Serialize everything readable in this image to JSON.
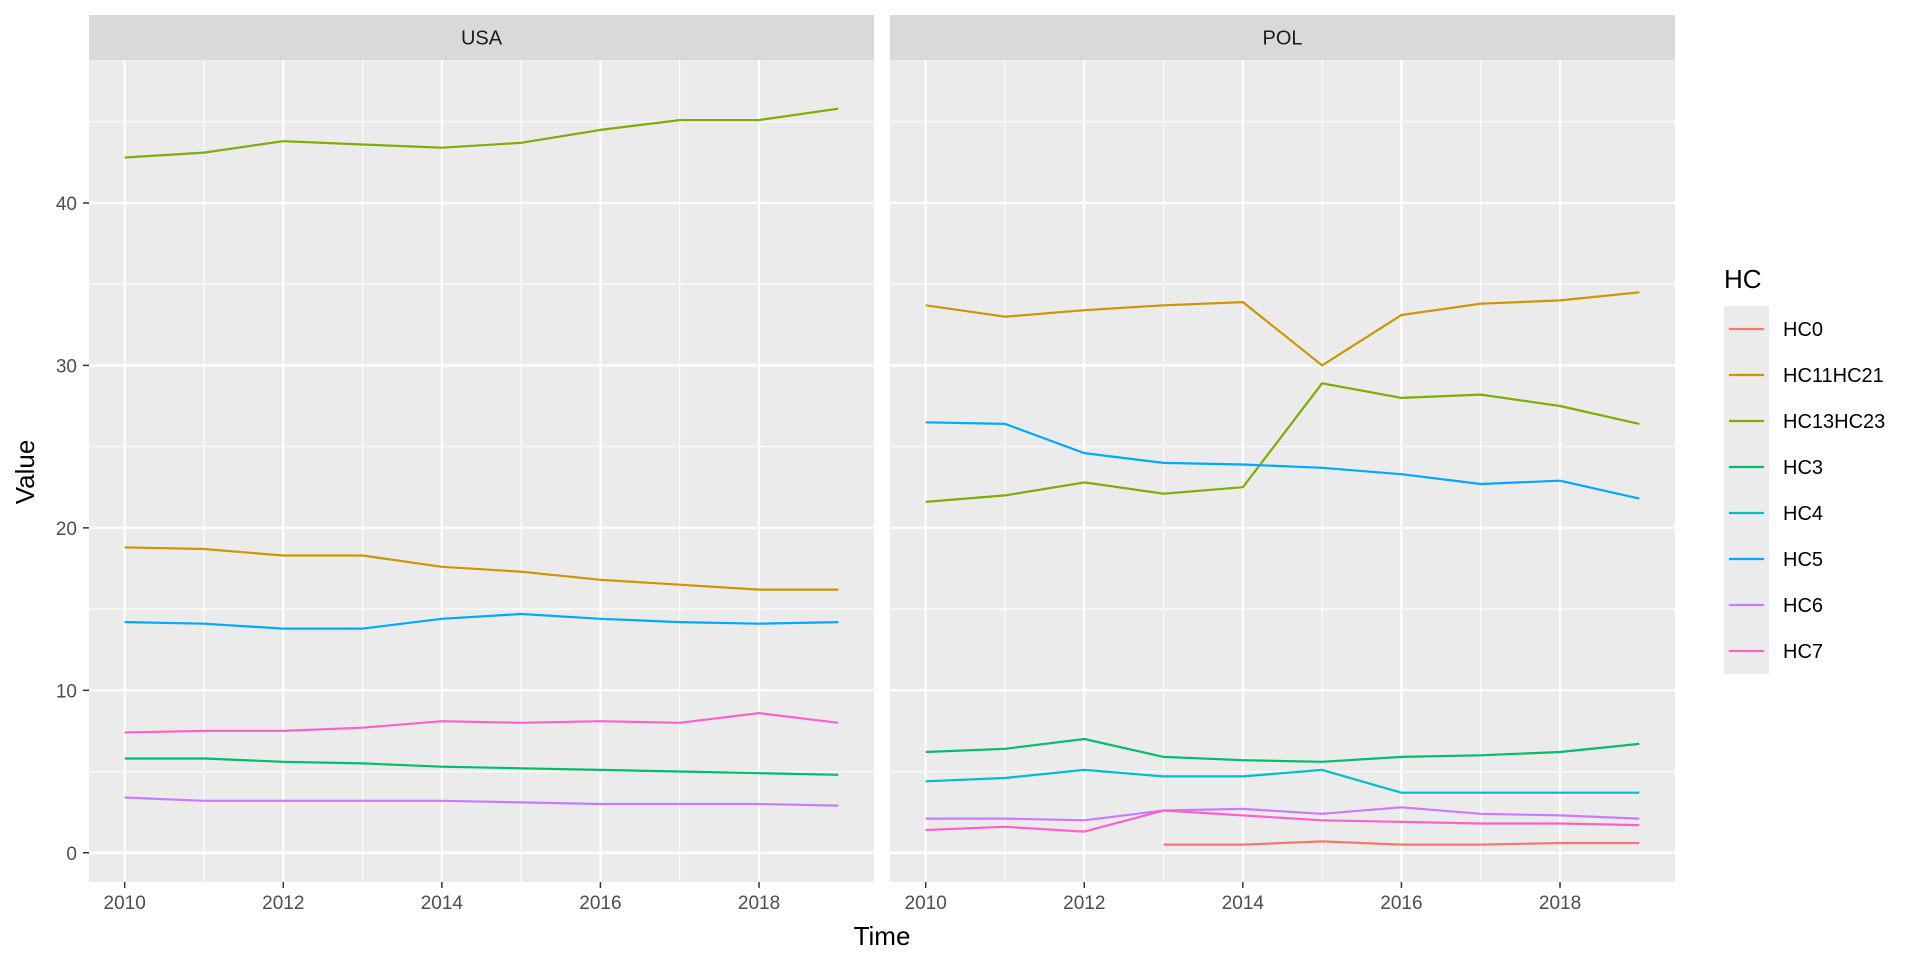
{
  "chart_data": {
    "type": "line",
    "xlabel": "Time",
    "ylabel": "Value",
    "xlim": [
      2009.55,
      2019.45
    ],
    "ylim": [
      -1.8,
      48.8
    ],
    "x_ticks": [
      2010,
      2012,
      2014,
      2016,
      2018
    ],
    "y_ticks": [
      0,
      10,
      20,
      30,
      40
    ],
    "grid": true,
    "legend": {
      "title": "HC",
      "position": "right",
      "entries": [
        {
          "name": "HC0",
          "color": "#F8766D"
        },
        {
          "name": "HC11HC21",
          "color": "#CD9600"
        },
        {
          "name": "HC13HC23",
          "color": "#7CAE00"
        },
        {
          "name": "HC3",
          "color": "#00BE67"
        },
        {
          "name": "HC4",
          "color": "#00BFC4"
        },
        {
          "name": "HC5",
          "color": "#00A9FF"
        },
        {
          "name": "HC6",
          "color": "#C77CFF"
        },
        {
          "name": "HC7",
          "color": "#FF61CC"
        }
      ]
    },
    "panels": [
      {
        "title": "USA",
        "x": [
          2010,
          2011,
          2012,
          2013,
          2014,
          2015,
          2016,
          2017,
          2018,
          2019
        ],
        "series": [
          {
            "name": "HC11HC21",
            "color": "#CD9600",
            "values": [
              18.8,
              18.7,
              18.3,
              18.3,
              17.6,
              17.3,
              16.8,
              16.5,
              16.2,
              16.2
            ]
          },
          {
            "name": "HC13HC23",
            "color": "#7CAE00",
            "values": [
              42.8,
              43.1,
              43.8,
              43.6,
              43.4,
              43.7,
              44.5,
              45.1,
              45.1,
              45.8
            ]
          },
          {
            "name": "HC3",
            "color": "#00BE67",
            "values": [
              5.8,
              5.8,
              5.6,
              5.5,
              5.3,
              5.2,
              5.1,
              5.0,
              4.9,
              4.8
            ]
          },
          {
            "name": "HC5",
            "color": "#00A9FF",
            "values": [
              14.2,
              14.1,
              13.8,
              13.8,
              14.4,
              14.7,
              14.4,
              14.2,
              14.1,
              14.2
            ]
          },
          {
            "name": "HC6",
            "color": "#C77CFF",
            "values": [
              3.4,
              3.2,
              3.2,
              3.2,
              3.2,
              3.1,
              3.0,
              3.0,
              3.0,
              2.9
            ]
          },
          {
            "name": "HC7",
            "color": "#FF61CC",
            "values": [
              7.4,
              7.5,
              7.5,
              7.7,
              8.1,
              8.0,
              8.1,
              8.0,
              8.6,
              8.0
            ]
          }
        ]
      },
      {
        "title": "POL",
        "x": [
          2010,
          2011,
          2012,
          2013,
          2014,
          2015,
          2016,
          2017,
          2018,
          2019
        ],
        "series": [
          {
            "name": "HC0",
            "color": "#F8766D",
            "values": [
              null,
              null,
              null,
              0.5,
              0.5,
              0.7,
              0.5,
              0.5,
              0.6,
              0.6
            ]
          },
          {
            "name": "HC11HC21",
            "color": "#CD9600",
            "values": [
              33.7,
              33.0,
              33.4,
              33.7,
              33.9,
              30.0,
              33.1,
              33.8,
              34.0,
              34.5
            ]
          },
          {
            "name": "HC13HC23",
            "color": "#7CAE00",
            "values": [
              21.6,
              22.0,
              22.8,
              22.1,
              22.5,
              28.9,
              28.0,
              28.2,
              27.5,
              26.4
            ]
          },
          {
            "name": "HC3",
            "color": "#00BE67",
            "values": [
              6.2,
              6.4,
              7.0,
              5.9,
              5.7,
              5.6,
              5.9,
              6.0,
              6.2,
              6.7
            ]
          },
          {
            "name": "HC4",
            "color": "#00BFC4",
            "values": [
              4.4,
              4.6,
              5.1,
              4.7,
              4.7,
              5.1,
              3.7,
              3.7,
              3.7,
              3.7
            ]
          },
          {
            "name": "HC5",
            "color": "#00A9FF",
            "values": [
              26.5,
              26.4,
              24.6,
              24.0,
              23.9,
              23.7,
              23.3,
              22.7,
              22.9,
              21.8
            ]
          },
          {
            "name": "HC6",
            "color": "#C77CFF",
            "values": [
              2.1,
              2.1,
              2.0,
              2.6,
              2.7,
              2.4,
              2.8,
              2.4,
              2.3,
              2.1
            ]
          },
          {
            "name": "HC7",
            "color": "#FF61CC",
            "values": [
              1.4,
              1.6,
              1.3,
              2.6,
              2.3,
              2.0,
              1.9,
              1.8,
              1.8,
              1.7
            ]
          }
        ]
      }
    ]
  }
}
